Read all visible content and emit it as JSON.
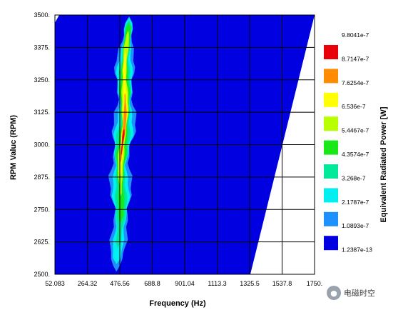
{
  "chart_data": {
    "type": "heatmap",
    "title": "",
    "xlabel": "Frequency (Hz)",
    "ylabel": "RPM Valuc (RPM)",
    "x_ticks": [
      "52.083",
      "264.32",
      "476.56",
      "688.8",
      "901.04",
      "1113.3",
      "1325.5",
      "1537.8",
      "1750."
    ],
    "y_ticks": [
      "2500.",
      "2625.",
      "2750.",
      "2875.",
      "3000.",
      "3125.",
      "3250.",
      "3375.",
      "3500."
    ],
    "xlim": [
      52.083,
      1750.0
    ],
    "ylim": [
      2500,
      3500
    ],
    "grid": true,
    "colorbar": {
      "label": "Equivalent Radiated Power [W]",
      "levels": [
        "9.8041e-7",
        "8.7147e-7",
        "7.6254e-7",
        "6.536e-7",
        "5.4467e-7",
        "4.3574e-7",
        "3.268e-7",
        "2.1787e-7",
        "1.0893e-7",
        "1.2387e-13"
      ],
      "colors": [
        "#e8000b",
        "#ff8c00",
        "#ffff00",
        "#b8ff00",
        "#18e818",
        "#00e89a",
        "#00f0f0",
        "#1e90ff",
        "#0000e0"
      ]
    },
    "data_boundary": {
      "description_free": true,
      "bottom_right_freq": 1330,
      "top_right_freq": 1750,
      "top_left_freq": 80
    },
    "ridge": {
      "center_freq_at_min_rpm": 460,
      "center_freq_at_max_rpm": 530,
      "peak_rpm": 3000,
      "peak_freq": 500
    }
  },
  "watermark": {
    "icon": "wechat-icon",
    "text": "电磁时空"
  }
}
